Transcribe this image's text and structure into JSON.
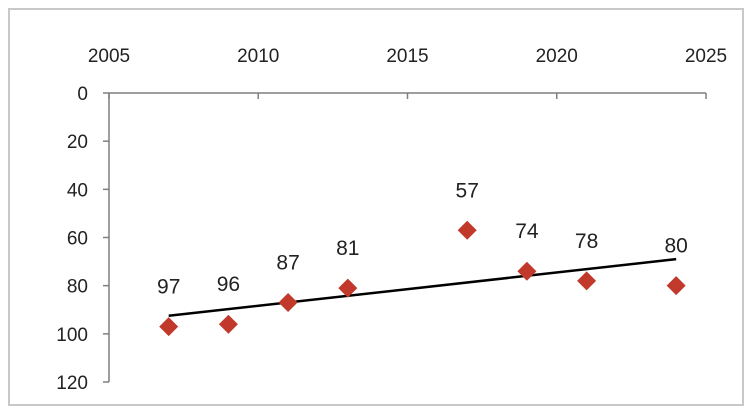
{
  "chart_data": {
    "type": "scatter",
    "title": "",
    "xlabel": "",
    "ylabel": "",
    "x_axis_position": "top",
    "y_axis_reversed": true,
    "xlim": [
      2005,
      2025
    ],
    "ylim": [
      0,
      120
    ],
    "x_ticks": [
      "2005",
      "2010",
      "2015",
      "2020",
      "2025"
    ],
    "y_ticks": [
      "0",
      "20",
      "40",
      "60",
      "80",
      "100",
      "120"
    ],
    "grid": false,
    "legend": "none",
    "marker": "diamond",
    "colors": {
      "marker": "#c0392b",
      "trendline": "#000000",
      "axis": "#7f7f7f",
      "frame": "#c8c8c8"
    },
    "series": [
      {
        "x": [
          2007,
          2009,
          2011,
          2013,
          2017,
          2019,
          2021,
          2024
        ],
        "y": [
          97,
          96,
          87,
          81,
          57,
          74,
          78,
          80
        ],
        "labels": [
          "97",
          "96",
          "87",
          "81",
          "57",
          "74",
          "78",
          "80"
        ]
      }
    ],
    "trendline": {
      "type": "linear",
      "x": [
        2007,
        2024
      ],
      "y": [
        92.5,
        69
      ]
    }
  }
}
